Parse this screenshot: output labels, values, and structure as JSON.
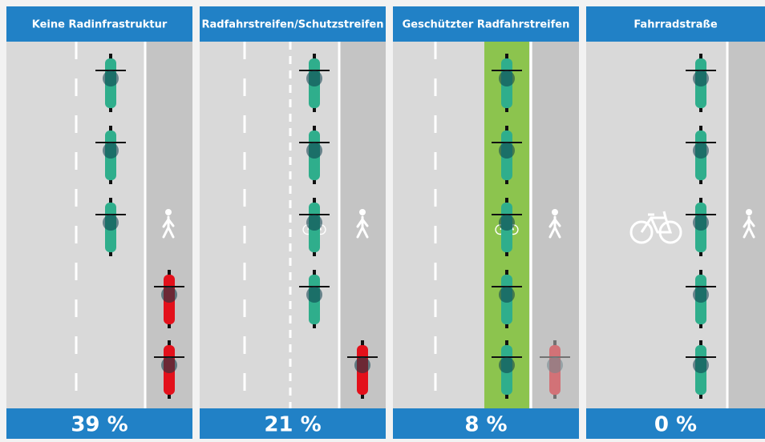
{
  "panels": [
    {
      "title": "Keine Radinfrastruktur",
      "footer": "39 %"
    },
    {
      "title": "Radfahrstreifen/Schutzstreifen",
      "footer": "21 %"
    },
    {
      "title": "Geschützter Radfahrstreifen",
      "footer": "8 %"
    },
    {
      "title": "Fahrradstraße",
      "footer": "0 %"
    }
  ]
}
